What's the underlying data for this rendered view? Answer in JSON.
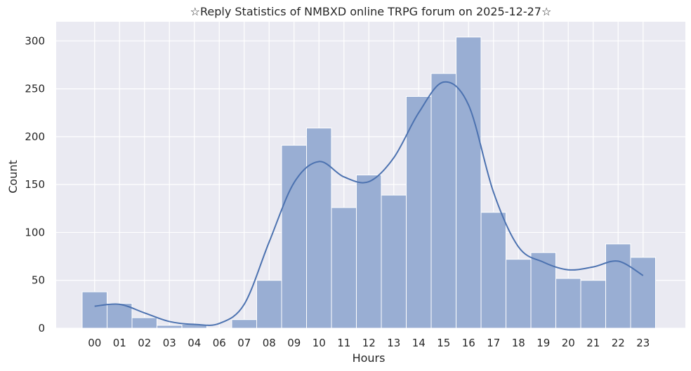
{
  "chart_data": {
    "type": "bar",
    "title": "☆Reply Statistics of NMBXD online TRPG forum on 2025-12-27☆",
    "xlabel": "Hours",
    "ylabel": "Count",
    "categories": [
      "00",
      "01",
      "02",
      "03",
      "04",
      "06",
      "07",
      "08",
      "09",
      "10",
      "11",
      "12",
      "13",
      "14",
      "15",
      "16",
      "17",
      "18",
      "19",
      "20",
      "21",
      "22",
      "23"
    ],
    "values": [
      38,
      26,
      11,
      3,
      4,
      0,
      9,
      50,
      191,
      209,
      126,
      160,
      139,
      242,
      266,
      304,
      121,
      72,
      79,
      52,
      50,
      88,
      74
    ],
    "ylim": [
      0,
      320
    ],
    "yticks": [
      0,
      50,
      100,
      150,
      200,
      250,
      300
    ],
    "kde": {
      "x": [
        "00",
        "01",
        "02",
        "03",
        "04",
        "06",
        "07",
        "08",
        "09",
        "10",
        "11",
        "12",
        "13",
        "14",
        "15",
        "16",
        "17",
        "18",
        "19",
        "20",
        "21",
        "22",
        "23"
      ],
      "y": [
        23,
        25,
        16,
        7,
        4,
        5,
        25,
        90,
        152,
        174,
        158,
        153,
        178,
        225,
        257,
        233,
        142,
        85,
        69,
        61,
        64,
        70,
        55
      ]
    },
    "grid": true,
    "colors": {
      "bar": "#99aed3",
      "bar_edge": "#ffffff",
      "kde_line": "#4c72b0",
      "plot_bg": "#eaeaf2",
      "grid": "#ffffff"
    }
  }
}
